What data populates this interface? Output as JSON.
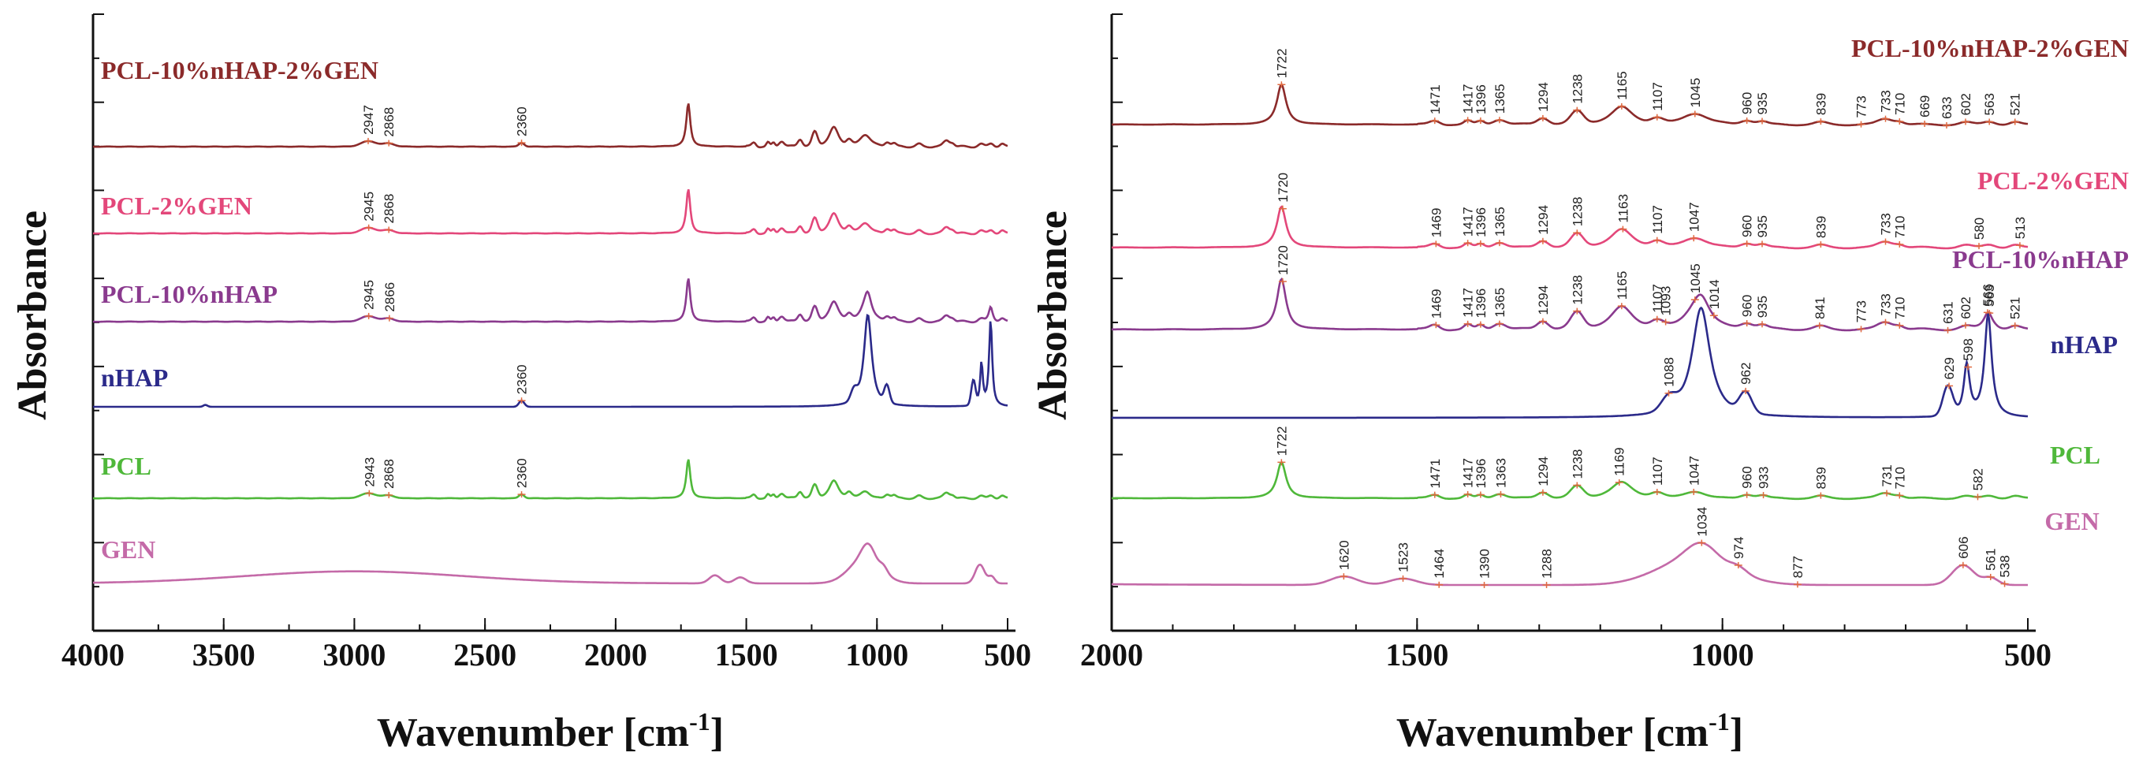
{
  "chart_data": [
    {
      "type": "line",
      "panel": "left",
      "title": "",
      "xlabel": "Wavenumber [cm",
      "xlabel_sup": "-1",
      "xlabel_close": "]",
      "ylabel": "Absorbance",
      "xlim": [
        4000,
        500
      ],
      "x_ticks": [
        "4000",
        "3500",
        "3000",
        "2500",
        "2000",
        "1500",
        "1000",
        "500"
      ],
      "x_tick_values": [
        4000,
        3500,
        3000,
        2500,
        2000,
        1500,
        1000,
        500
      ],
      "series": [
        {
          "name": "PCL-10%nHAP-2%GEN",
          "color": "#8b2a2a",
          "peaks": [
            {
              "x": 2947,
              "label": "2947"
            },
            {
              "x": 2868,
              "label": "2868"
            },
            {
              "x": 2360,
              "label": "2360"
            }
          ]
        },
        {
          "name": "PCL-2%GEN",
          "color": "#e3477a",
          "peaks": [
            {
              "x": 2945,
              "label": "2945"
            },
            {
              "x": 2868,
              "label": "2868"
            }
          ]
        },
        {
          "name": "PCL-10%nHAP",
          "color": "#8a3a8e",
          "peaks": [
            {
              "x": 2945,
              "label": "2945"
            },
            {
              "x": 2866,
              "label": "2866"
            }
          ]
        },
        {
          "name": "nHAP",
          "color": "#2b2a8a",
          "peaks": [
            {
              "x": 2360,
              "label": "2360"
            }
          ]
        },
        {
          "name": "PCL",
          "color": "#4fb83a",
          "peaks": [
            {
              "x": 2943,
              "label": "2943"
            },
            {
              "x": 2868,
              "label": "2868"
            },
            {
              "x": 2360,
              "label": "2360"
            }
          ]
        },
        {
          "name": "GEN",
          "color": "#c46aa8",
          "peaks": []
        }
      ]
    },
    {
      "type": "line",
      "panel": "right",
      "title": "",
      "xlabel": "Wavenumber [cm",
      "xlabel_sup": "-1",
      "xlabel_close": "]",
      "ylabel": "Absorbance",
      "xlim": [
        2000,
        500
      ],
      "x_ticks": [
        "2000",
        "1500",
        "1000",
        "500"
      ],
      "x_tick_values": [
        2000,
        1500,
        1000,
        500
      ],
      "series": [
        {
          "name": "PCL-10%nHAP-2%GEN",
          "color": "#8b2a2a",
          "peaks": [
            {
              "x": 1722,
              "label": "1722"
            },
            {
              "x": 1471,
              "label": "1471"
            },
            {
              "x": 1417,
              "label": "1417"
            },
            {
              "x": 1396,
              "label": "1396"
            },
            {
              "x": 1365,
              "label": "1365"
            },
            {
              "x": 1294,
              "label": "1294"
            },
            {
              "x": 1238,
              "label": "1238"
            },
            {
              "x": 1165,
              "label": "1165"
            },
            {
              "x": 1107,
              "label": "1107"
            },
            {
              "x": 1045,
              "label": "1045"
            },
            {
              "x": 960,
              "label": "960"
            },
            {
              "x": 935,
              "label": "935"
            },
            {
              "x": 839,
              "label": "839"
            },
            {
              "x": 773,
              "label": "773"
            },
            {
              "x": 733,
              "label": "733"
            },
            {
              "x": 710,
              "label": "710"
            },
            {
              "x": 669,
              "label": "669"
            },
            {
              "x": 633,
              "label": "633"
            },
            {
              "x": 602,
              "label": "602"
            },
            {
              "x": 563,
              "label": "563"
            },
            {
              "x": 521,
              "label": "521"
            }
          ]
        },
        {
          "name": "PCL-2%GEN",
          "color": "#e3477a",
          "peaks": [
            {
              "x": 1720,
              "label": "1720"
            },
            {
              "x": 1469,
              "label": "1469"
            },
            {
              "x": 1417,
              "label": "1417"
            },
            {
              "x": 1396,
              "label": "1396"
            },
            {
              "x": 1365,
              "label": "1365"
            },
            {
              "x": 1294,
              "label": "1294"
            },
            {
              "x": 1238,
              "label": "1238"
            },
            {
              "x": 1163,
              "label": "1163"
            },
            {
              "x": 1107,
              "label": "1107"
            },
            {
              "x": 1047,
              "label": "1047"
            },
            {
              "x": 960,
              "label": "960"
            },
            {
              "x": 935,
              "label": "935"
            },
            {
              "x": 839,
              "label": "839"
            },
            {
              "x": 733,
              "label": "733"
            },
            {
              "x": 710,
              "label": "710"
            },
            {
              "x": 580,
              "label": "580"
            },
            {
              "x": 513,
              "label": "513"
            }
          ]
        },
        {
          "name": "PCL-10%nHAP",
          "color": "#8a3a8e",
          "peaks": [
            {
              "x": 1720,
              "label": "1720"
            },
            {
              "x": 1469,
              "label": "1469"
            },
            {
              "x": 1417,
              "label": "1417"
            },
            {
              "x": 1396,
              "label": "1396"
            },
            {
              "x": 1365,
              "label": "1365"
            },
            {
              "x": 1294,
              "label": "1294"
            },
            {
              "x": 1238,
              "label": "1238"
            },
            {
              "x": 1165,
              "label": "1165"
            },
            {
              "x": 1107,
              "label": "1107"
            },
            {
              "x": 1093,
              "label": "1093"
            },
            {
              "x": 1045,
              "label": "1045"
            },
            {
              "x": 1014,
              "label": "1014"
            },
            {
              "x": 960,
              "label": "960"
            },
            {
              "x": 935,
              "label": "935"
            },
            {
              "x": 841,
              "label": "841"
            },
            {
              "x": 773,
              "label": "773"
            },
            {
              "x": 733,
              "label": "733"
            },
            {
              "x": 710,
              "label": "710"
            },
            {
              "x": 631,
              "label": "631"
            },
            {
              "x": 602,
              "label": "602"
            },
            {
              "x": 566,
              "label": "566"
            },
            {
              "x": 563,
              "label": "563"
            },
            {
              "x": 521,
              "label": "521"
            }
          ]
        },
        {
          "name": "nHAP",
          "color": "#2b2a8a",
          "peaks": [
            {
              "x": 1088,
              "label": "1088"
            },
            {
              "x": 962,
              "label": "962"
            },
            {
              "x": 629,
              "label": "629"
            },
            {
              "x": 598,
              "label": "598"
            }
          ]
        },
        {
          "name": "PCL",
          "color": "#4fb83a",
          "peaks": [
            {
              "x": 1722,
              "label": "1722"
            },
            {
              "x": 1471,
              "label": "1471"
            },
            {
              "x": 1417,
              "label": "1417"
            },
            {
              "x": 1396,
              "label": "1396"
            },
            {
              "x": 1363,
              "label": "1363"
            },
            {
              "x": 1294,
              "label": "1294"
            },
            {
              "x": 1238,
              "label": "1238"
            },
            {
              "x": 1169,
              "label": "1169"
            },
            {
              "x": 1107,
              "label": "1107"
            },
            {
              "x": 1047,
              "label": "1047"
            },
            {
              "x": 960,
              "label": "960"
            },
            {
              "x": 933,
              "label": "933"
            },
            {
              "x": 839,
              "label": "839"
            },
            {
              "x": 731,
              "label": "731"
            },
            {
              "x": 710,
              "label": "710"
            },
            {
              "x": 582,
              "label": "582"
            }
          ]
        },
        {
          "name": "GEN",
          "color": "#c46aa8",
          "peaks": [
            {
              "x": 1620,
              "label": "1620"
            },
            {
              "x": 1523,
              "label": "1523"
            },
            {
              "x": 1464,
              "label": "1464"
            },
            {
              "x": 1390,
              "label": "1390"
            },
            {
              "x": 1288,
              "label": "1288"
            },
            {
              "x": 1034,
              "label": "1034"
            },
            {
              "x": 974,
              "label": "974"
            },
            {
              "x": 877,
              "label": "877"
            },
            {
              "x": 606,
              "label": "606"
            },
            {
              "x": 561,
              "label": "561"
            },
            {
              "x": 538,
              "label": "538"
            }
          ]
        }
      ]
    }
  ]
}
